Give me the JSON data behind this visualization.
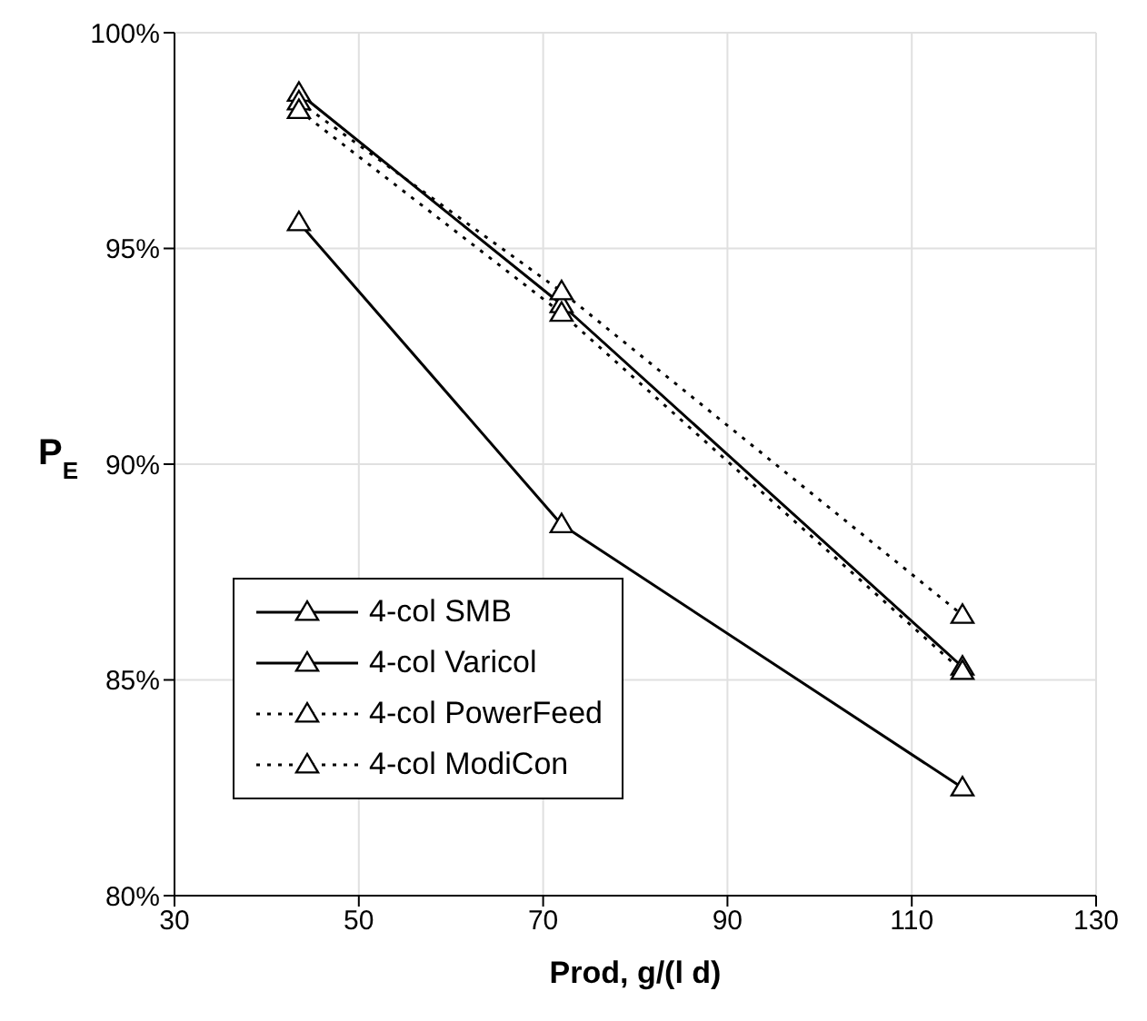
{
  "chart_data": {
    "type": "line",
    "xlabel": "Prod, g/(l d)",
    "ylabel": "P$_{E}$",
    "x": [
      43.5,
      72,
      115.5
    ],
    "series": [
      {
        "name": "4-col SMB",
        "color": "#000000",
        "values": [
          95.6,
          88.6,
          82.5
        ],
        "line_style": "solid"
      },
      {
        "name": "4-col Varicol",
        "color": "#000000",
        "values": [
          98.6,
          93.7,
          85.3
        ],
        "line_style": "solid"
      },
      {
        "name": "4-col PowerFeed",
        "color": "#000000",
        "values": [
          98.4,
          94.0,
          86.5
        ],
        "line_style": "dotted"
      },
      {
        "name": "4-col ModiCon",
        "color": "#000000",
        "values": [
          98.2,
          93.5,
          85.2
        ],
        "line_style": "dotted"
      }
    ],
    "xlim": [
      30,
      130
    ],
    "xticks": [
      30,
      50,
      70,
      90,
      110,
      130
    ],
    "ylim": [
      80,
      100
    ],
    "yticks": [
      {
        "value": 80,
        "label": "80%"
      },
      {
        "value": 85,
        "label": "85%"
      },
      {
        "value": 90,
        "label": "90%"
      },
      {
        "value": 95,
        "label": "95%"
      },
      {
        "value": 100,
        "label": "100%"
      }
    ],
    "grid": true,
    "legend": "bottom left",
    "marker": "triangle"
  }
}
